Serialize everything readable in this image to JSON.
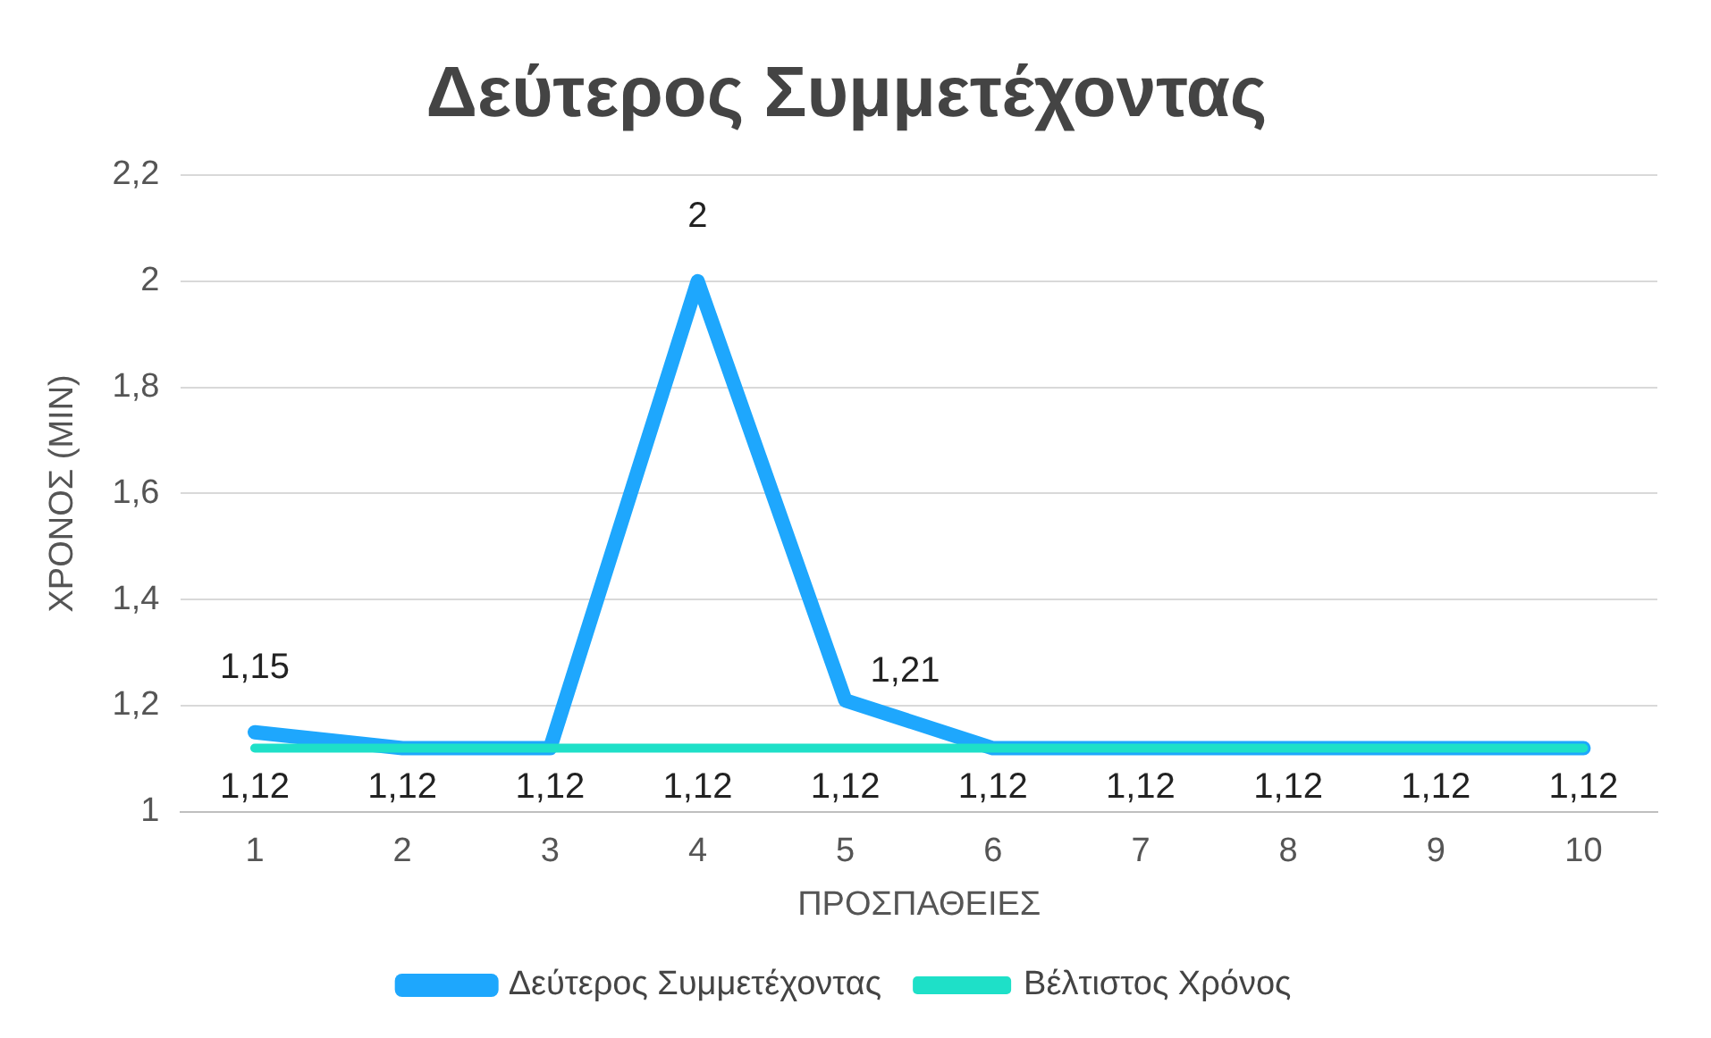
{
  "chart_data": {
    "type": "line",
    "title": "Δεύτερος Συμμετέχοντας",
    "xlabel": "ΠΡΟΣΠΑΘΕΙΕΣ",
    "ylabel": "ΧΡΟΝΟΣ (MIN)",
    "categories": [
      "1",
      "2",
      "3",
      "4",
      "5",
      "6",
      "7",
      "8",
      "9",
      "10"
    ],
    "series": [
      {
        "name": "Δεύτερος Συμμετέχοντας",
        "color": "#1ea7fd",
        "values": [
          1.15,
          1.12,
          1.12,
          2,
          1.21,
          1.12,
          1.12,
          1.12,
          1.12,
          1.12
        ],
        "value_labels": [
          "1,15",
          null,
          null,
          "2",
          "1,21",
          null,
          null,
          null,
          null,
          null
        ]
      },
      {
        "name": "Βέλτιστος Χρόνος",
        "color": "#1ee0c8",
        "values": [
          1.12,
          1.12,
          1.12,
          1.12,
          1.12,
          1.12,
          1.12,
          1.12,
          1.12,
          1.12
        ],
        "value_labels": [
          "1,12",
          "1,12",
          "1,12",
          "1,12",
          "1,12",
          "1,12",
          "1,12",
          "1,12",
          "1,12",
          "1,12"
        ]
      }
    ],
    "ylim": [
      1,
      2.2
    ],
    "yticks": [
      1,
      {
        "value": 1.2,
        "label": "1,2"
      },
      {
        "value": 1.4,
        "label": "1,4"
      },
      {
        "value": 1.6,
        "label": "1,6"
      },
      {
        "value": 1.8,
        "label": "1,8"
      },
      2,
      {
        "value": 2.2,
        "label": "2,2"
      }
    ],
    "grid": "y",
    "legend": "bottom",
    "marker": "none",
    "line_style": "solid"
  }
}
